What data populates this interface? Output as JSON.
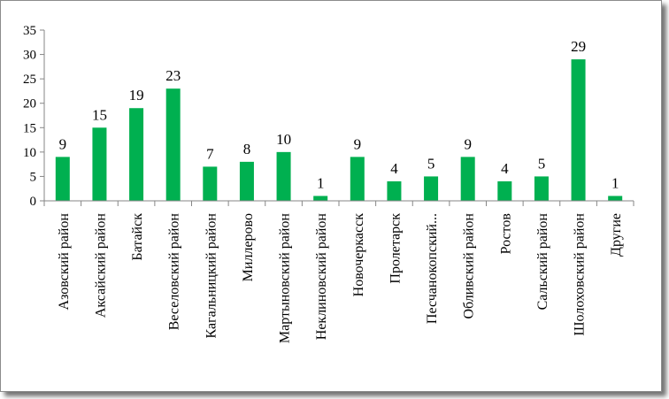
{
  "chart_data": {
    "type": "bar",
    "categories": [
      "Азовский район",
      "Аксайский район",
      "Батайск",
      "Веселовский район",
      "Кагальницкий район",
      "Миллерово",
      "Мартыновский район",
      "Неклиновский район",
      "Новочеркасск",
      "Пролетарск",
      "Песчанокопский...",
      "Обливский район",
      "Ростов",
      "Сальский район",
      "Шолоховский район",
      "Другие"
    ],
    "values": [
      9,
      15,
      19,
      23,
      7,
      8,
      10,
      1,
      9,
      4,
      5,
      9,
      4,
      5,
      29,
      1
    ],
    "ylim": [
      0,
      35
    ],
    "yticks": [
      0,
      5,
      10,
      15,
      20,
      25,
      30,
      35
    ],
    "grid": false,
    "legend": "none",
    "bar_color": "#00b050",
    "title": "",
    "xlabel": "",
    "ylabel": ""
  }
}
